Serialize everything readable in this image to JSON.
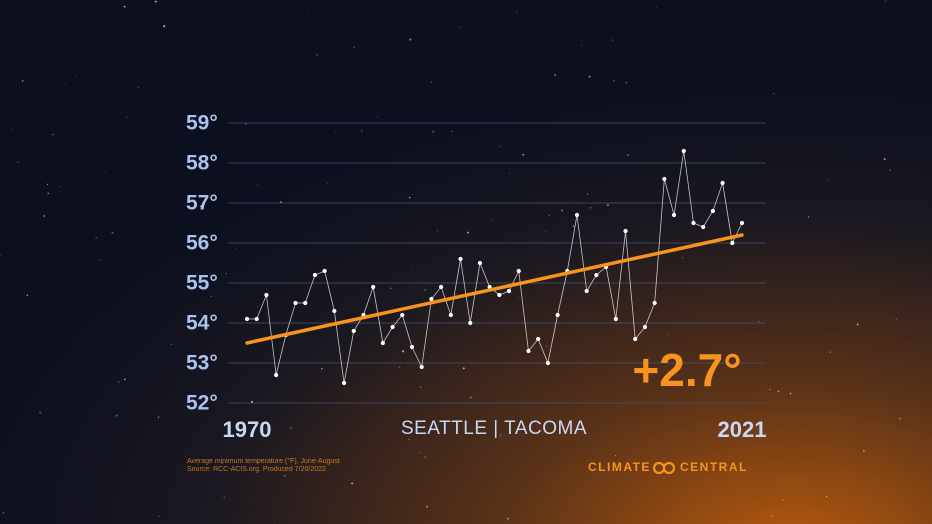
{
  "chart_data": {
    "type": "line",
    "title": "SEATTLE | TACOMA",
    "annotation": "+2.7°",
    "notes": [
      "Average minimum temperature (°F), June-August",
      "Source: RCC-ACIS.org. Produced 7/20/2022"
    ],
    "brand": "CLIMATE CENTRAL",
    "x": [
      1970,
      1971,
      1972,
      1973,
      1974,
      1975,
      1976,
      1977,
      1978,
      1979,
      1980,
      1981,
      1982,
      1983,
      1984,
      1985,
      1986,
      1987,
      1988,
      1989,
      1990,
      1991,
      1992,
      1993,
      1994,
      1995,
      1996,
      1997,
      1998,
      1999,
      2000,
      2001,
      2002,
      2003,
      2004,
      2005,
      2006,
      2007,
      2008,
      2009,
      2010,
      2011,
      2012,
      2013,
      2014,
      2015,
      2016,
      2017,
      2018,
      2019,
      2020,
      2021
    ],
    "series": [
      {
        "color": "#ffffff",
        "values": [
          54.1,
          54.1,
          54.7,
          52.7,
          53.7,
          54.5,
          54.5,
          55.2,
          55.3,
          54.3,
          52.5,
          53.8,
          54.2,
          54.9,
          53.5,
          53.9,
          54.2,
          53.4,
          52.9,
          54.6,
          54.9,
          54.2,
          55.6,
          54.0,
          55.5,
          54.9,
          54.7,
          54.8,
          55.3,
          53.3,
          53.6,
          53.0,
          54.2,
          55.3,
          56.7,
          54.8,
          55.2,
          55.4,
          54.1,
          56.3,
          53.6,
          53.9,
          54.5,
          57.6,
          56.7,
          58.3,
          56.5,
          56.4,
          56.8,
          57.5,
          56.0,
          56.5
        ]
      }
    ],
    "trend": {
      "color": "#f7941d",
      "x": [
        1970,
        2021
      ],
      "values": [
        53.5,
        56.2
      ]
    },
    "xlim": [
      1970,
      2021
    ],
    "xticks": [
      1970,
      2021
    ],
    "ylim": [
      52,
      59
    ],
    "yticks": [
      {
        "value": 52,
        "label": "52°"
      },
      {
        "value": 53,
        "label": "53°"
      },
      {
        "value": 54,
        "label": "54°"
      },
      {
        "value": 55,
        "label": "55°"
      },
      {
        "value": 56,
        "label": "56°"
      },
      {
        "value": 57,
        "label": "57°"
      },
      {
        "value": 58,
        "label": "58°"
      },
      {
        "value": 59,
        "label": "59°"
      }
    ],
    "grid": true
  }
}
